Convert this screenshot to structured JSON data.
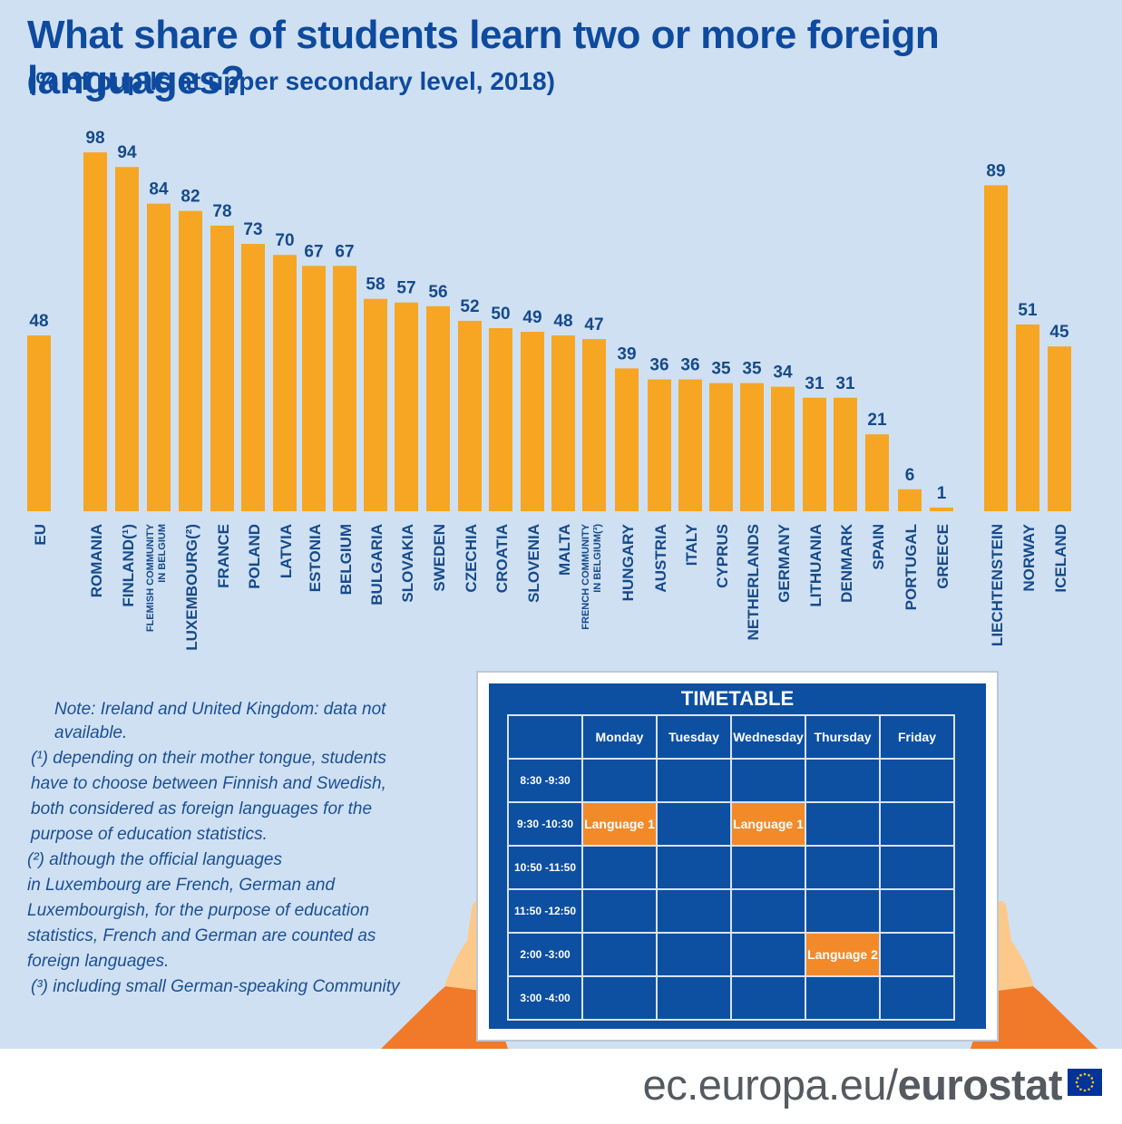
{
  "title": "What share of students learn two or more foreign languages?",
  "subtitle": "(% of pupils at upper secondary level, 2018)",
  "chart_data": {
    "type": "bar",
    "title": "What share of students learn two or more foreign languages?",
    "subtitle": "(% of pupils at upper secondary level, 2018)",
    "categories": [
      "EU",
      "ROMANIA",
      "FINLAND(¹)",
      "FLEMISH COMMUNITY IN BELGIUM",
      "LUXEMBOURG(²)",
      "FRANCE",
      "POLAND",
      "LATVIA",
      "ESTONIA",
      "BELGIUM",
      "BULGARIA",
      "SLOVAKIA",
      "SWEDEN",
      "CZECHIA",
      "CROATIA",
      "SLOVENIA",
      "MALTA",
      "FRENCH COMMUNITY IN BELGIUM(³)",
      "HUNGARY",
      "AUSTRIA",
      "ITALY",
      "CYPRUS",
      "NETHERLANDS",
      "GERMANY",
      "LITHUANIA",
      "DENMARK",
      "SPAIN",
      "PORTUGAL",
      "GREECE",
      "LIECHTENSTEIN",
      "NORWAY",
      "ICELAND"
    ],
    "values": [
      48,
      98,
      94,
      84,
      82,
      78,
      73,
      70,
      67,
      67,
      58,
      57,
      56,
      52,
      50,
      49,
      48,
      47,
      39,
      36,
      36,
      35,
      35,
      34,
      31,
      31,
      21,
      6,
      1,
      89,
      51,
      45
    ],
    "ylim": [
      0,
      100
    ],
    "grid": false,
    "colors": {
      "bar": "#f6a623",
      "text": "#164a8a",
      "background": "#cfe0f3"
    }
  },
  "notes": {
    "main": "Note: Ireland and United Kingdom: data not available.",
    "n1": [
      "(¹) depending on their mother tongue, students",
      "have to choose between Finnish and Swedish,",
      "both considered as foreign languages for the",
      "purpose of education statistics."
    ],
    "n2": [
      "(²) although the official languages",
      "in Luxembourg are French, German and",
      "Luxembourgish, for the purpose of education",
      "statistics, French and German are counted as",
      "foreign languages."
    ],
    "n3": "(³) including small German-speaking Community"
  },
  "timetable": {
    "title": "TIMETABLE",
    "days": [
      "Monday",
      "Tuesday",
      "Wednesday",
      "Thursday",
      "Friday"
    ],
    "times": [
      "8:30 -9:30",
      "9:30 -10:30",
      "10:50 -11:50",
      "11:50 -12:50",
      "2:00 -3:00",
      "3:00 -4:00"
    ],
    "entries": [
      {
        "row": 1,
        "col": 0,
        "label": "Language 1"
      },
      {
        "row": 1,
        "col": 2,
        "label": "Language 1"
      },
      {
        "row": 4,
        "col": 3,
        "label": "Language 2"
      }
    ]
  },
  "footer": {
    "url_prefix": "ec.europa.eu/",
    "brand": "eurostat"
  }
}
